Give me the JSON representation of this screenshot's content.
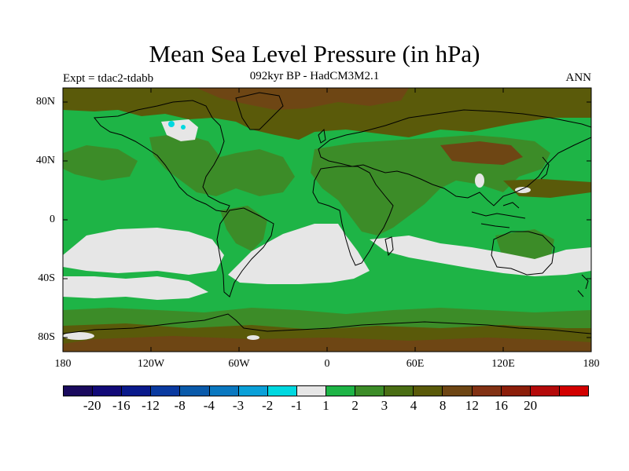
{
  "title": "Mean Sea Level Pressure (in hPa)",
  "subtitle": "092kyr BP - HadCM3M2.1",
  "experiment": "Expt = tdac2-tdabb",
  "season": "ANN",
  "lat_labels": [
    "80N",
    "40N",
    "0",
    "40S",
    "80S"
  ],
  "lon_labels": [
    "180",
    "120W",
    "60W",
    "0",
    "60E",
    "120E",
    "180"
  ],
  "colorbar": {
    "colors": [
      "#1a0a5e",
      "#120a78",
      "#0a1a8c",
      "#0a3aa0",
      "#0a5aaa",
      "#0a78c0",
      "#0aa0d8",
      "#00d8e0",
      "#e6e6e6",
      "#1eb446",
      "#3c8c28",
      "#4a6e14",
      "#5a5a0a",
      "#6e4614",
      "#823214",
      "#8c1e0a",
      "#b40a0a",
      "#d20000"
    ],
    "labels": [
      "-20",
      "-16",
      "-12",
      "-8",
      "-4",
      "-3",
      "-2",
      "-1",
      "1",
      "2",
      "3",
      "4",
      "8",
      "12",
      "16",
      "20"
    ]
  },
  "palette": {
    "white": "#e6e6e6",
    "green_light": "#1eb446",
    "green_mid": "#3c8c28",
    "olive": "#4a6e14",
    "brown": "#5a5a0a",
    "brown_dark": "#6e4614",
    "cyan": "#00d8e0"
  }
}
